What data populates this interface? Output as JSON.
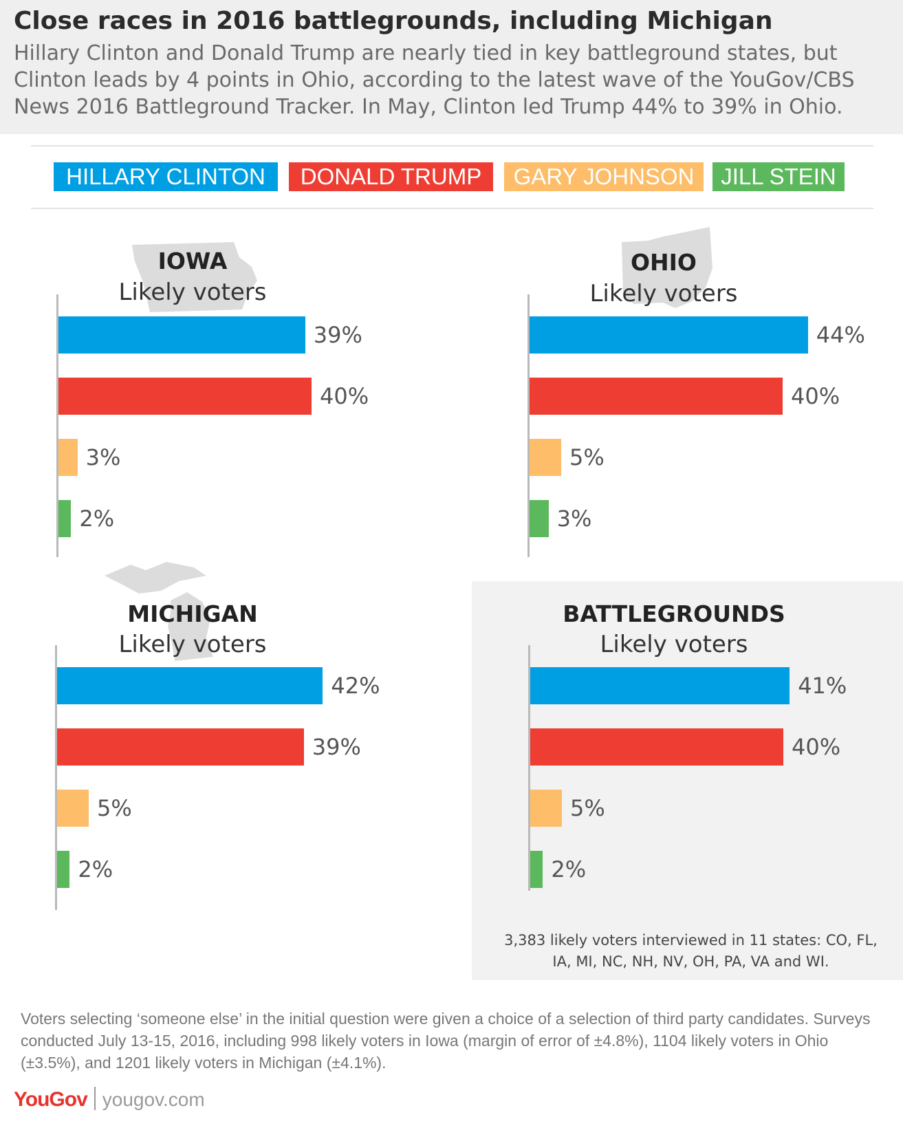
{
  "header": {
    "title": "Close races in 2016 battlegrounds, including Michigan",
    "subtitle": "Hillary Clinton and Donald Trump are nearly tied in key battleground states, but Clinton leads by 4 points in Ohio, according to the latest wave of the YouGov/CBS News 2016 Battleground Tracker. In May, Clinton led Trump 44% to 39% in Ohio."
  },
  "legend": [
    {
      "label": "HILLARY CLINTON",
      "color": "#009fe3"
    },
    {
      "label": "DONALD TRUMP",
      "color": "#ee3e34"
    },
    {
      "label": "GARY JOHNSON",
      "color": "#fdbd69"
    },
    {
      "label": "JILL STEIN",
      "color": "#5cb85c"
    }
  ],
  "chart_data": [
    {
      "type": "bar",
      "title": "IOWA",
      "subtitle": "Likely voters",
      "categories": [
        "HILLARY CLINTON",
        "DONALD TRUMP",
        "GARY JOHNSON",
        "JILL STEIN"
      ],
      "values": [
        39,
        40,
        3,
        2
      ],
      "labels": [
        "39%",
        "40%",
        "3%",
        "2%"
      ],
      "map_icon": "iowa-map-icon"
    },
    {
      "type": "bar",
      "title": "OHIO",
      "subtitle": "Likely voters",
      "categories": [
        "HILLARY CLINTON",
        "DONALD TRUMP",
        "GARY JOHNSON",
        "JILL STEIN"
      ],
      "values": [
        44,
        40,
        5,
        3
      ],
      "labels": [
        "44%",
        "40%",
        "5%",
        "3%"
      ],
      "map_icon": "ohio-map-icon"
    },
    {
      "type": "bar",
      "title": "MICHIGAN",
      "subtitle": "Likely voters",
      "categories": [
        "HILLARY CLINTON",
        "DONALD TRUMP",
        "GARY JOHNSON",
        "JILL STEIN"
      ],
      "values": [
        42,
        39,
        5,
        2
      ],
      "labels": [
        "42%",
        "39%",
        "5%",
        "2%"
      ],
      "map_icon": "michigan-map-icon"
    },
    {
      "type": "bar",
      "title": "BATTLEGROUNDS",
      "subtitle": "Likely voters",
      "categories": [
        "HILLARY CLINTON",
        "DONALD TRUMP",
        "GARY JOHNSON",
        "JILL STEIN"
      ],
      "values": [
        41,
        40,
        5,
        2
      ],
      "labels": [
        "41%",
        "40%",
        "5%",
        "2%"
      ],
      "note": "3,383 likely voters interviewed in 11 states: CO, FL, IA, MI, NC, NH, NV, OH, PA, VA and WI."
    }
  ],
  "footnote": "Voters selecting ‘someone else’ in the initial question were given a choice of a selection of third party candidates. Surveys conducted July 13-15, 2016, including 998 likely voters in Iowa (margin of error of ±4.8%), 1104 likely voters in Ohio (±3.5%), and 1201 likely voters in Michigan (±4.1%).",
  "brand": {
    "logo": "YouGov",
    "url": "yougov.com"
  }
}
